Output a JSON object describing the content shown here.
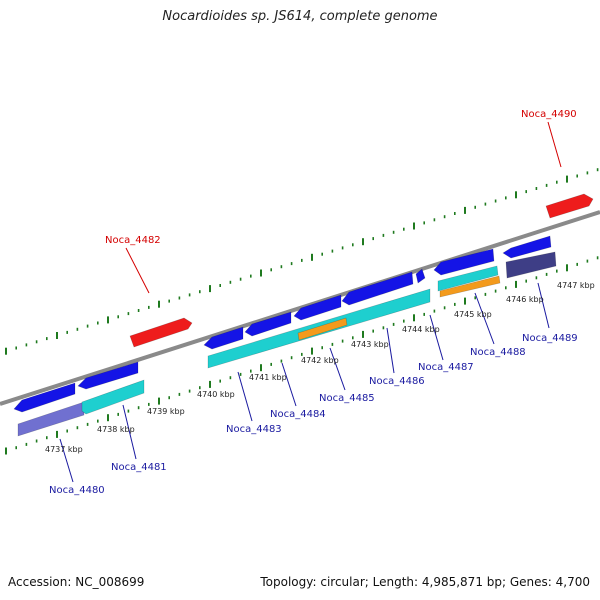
{
  "title": "Nocardioides sp. JS614, complete genome",
  "footer": {
    "accession": "Accession: NC_008699",
    "summary": "Topology: circular; Length: 4,985,871 bp; Genes: 4,700"
  },
  "colors": {
    "backbone": "#8a8a8a",
    "tick": "#1f7a1f",
    "label_forward": "#d40000",
    "label_reverse": "#1a1aa0",
    "gene_red": "#ee1c1c",
    "gene_blue": "#1414e6",
    "gene_cyan": "#1ecfcf",
    "gene_orange": "#f39a1c",
    "gene_indigo": "#7070d0",
    "gene_navy": "#3e3e86"
  },
  "scale": {
    "labels": [
      "4737 kbp",
      "4738 kbp",
      "4739 kbp",
      "4740 kbp",
      "4741 kbp",
      "4742 kbp",
      "4743 kbp",
      "4744 kbp",
      "4745 kbp",
      "4746 kbp",
      "4747 kbp"
    ]
  },
  "gene_labels": {
    "forward": [
      "Noca_4482",
      "Noca_4490"
    ],
    "reverse": [
      "Noca_4480",
      "Noca_4481",
      "Noca_4483",
      "Noca_4484",
      "Noca_4485",
      "Noca_4486",
      "Noca_4487",
      "Noca_4488",
      "Noca_4489"
    ]
  }
}
